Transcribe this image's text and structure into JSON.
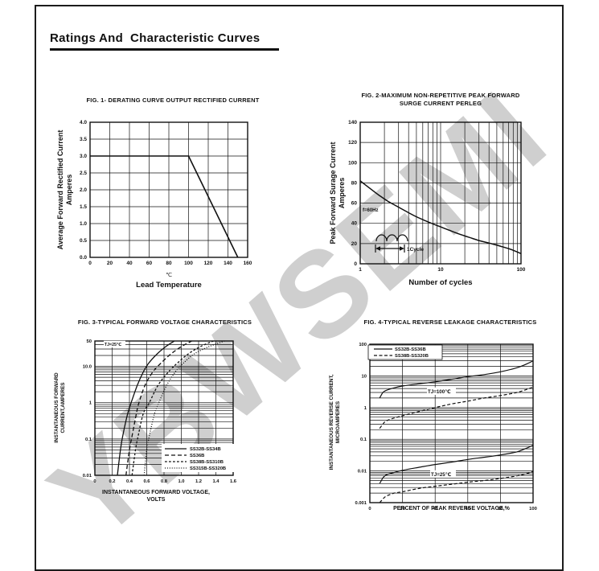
{
  "page": {
    "title": "Ratings And  Characteristic Curves",
    "watermark": "YBWSEMI"
  },
  "colors": {
    "ink": "#111111",
    "watermark_gray": "#cfcfcf",
    "background": "#ffffff"
  },
  "chart_data": [
    {
      "id": "fig1",
      "type": "line",
      "title_lines": [
        "FIG. 1- DERATING CURVE OUTPUT RECTIFIED CURRENT"
      ],
      "ylabel_lines": [
        "Average Forward Rectified Current",
        "Amperes"
      ],
      "xlabel_unit": "℃",
      "xlabel": "Lead Temperature",
      "x_axis": {
        "scale": "linear",
        "min": 0,
        "max": 160,
        "tick_values": [
          0,
          20,
          40,
          60,
          80,
          100,
          120,
          140,
          160
        ],
        "tick_labels": [
          "0",
          "20",
          "40",
          "60",
          "80",
          "100",
          "120",
          "140",
          "160"
        ]
      },
      "y_axis": {
        "scale": "linear",
        "min": 0,
        "max": 4,
        "tick_values": [
          0,
          0.5,
          1,
          1.5,
          2,
          2.5,
          3,
          3.5,
          4
        ],
        "tick_labels": [
          "0.0",
          "0.5",
          "1.0",
          "1.5",
          "2.0",
          "2.5",
          "3.0",
          "3.5",
          "4.0"
        ]
      },
      "grid": true,
      "series": [
        {
          "name": "derating-curve",
          "style": "solid",
          "smooth": false,
          "points": [
            [
              0,
              3
            ],
            [
              100,
              3
            ],
            [
              150,
              0
            ]
          ]
        }
      ],
      "annotations": [],
      "legend": []
    },
    {
      "id": "fig2",
      "type": "line",
      "title_lines": [
        "FIG. 2-MAXIMUM NON-REPETITIVE PEAK FORWARD",
        "SURGE CURRENT PERLEG"
      ],
      "ylabel_lines": [
        "Peak Forward Surage Current",
        "Amperes"
      ],
      "xlabel": "Number of cycles",
      "x_axis": {
        "scale": "log",
        "min": 1,
        "max": 100,
        "tick_values": [
          1,
          10,
          100
        ],
        "tick_labels": [
          "1",
          "10",
          "100"
        ]
      },
      "y_axis": {
        "scale": "linear",
        "min": 0,
        "max": 140,
        "tick_values": [
          0,
          20,
          40,
          60,
          80,
          100,
          120,
          140
        ],
        "tick_labels": [
          "0",
          "20",
          "40",
          "60",
          "80",
          "100",
          "120",
          "140"
        ]
      },
      "grid": true,
      "series": [
        {
          "name": "surge-current",
          "style": "solid",
          "smooth": true,
          "points": [
            [
              1,
              82
            ],
            [
              1.3,
              75
            ],
            [
              1.7,
              68
            ],
            [
              2.2,
              62
            ],
            [
              3,
              56
            ],
            [
              4,
              50.5
            ],
            [
              5,
              46.5
            ],
            [
              6.5,
              42.5
            ],
            [
              8,
              39.5
            ],
            [
              10,
              36.5
            ],
            [
              13,
              33
            ],
            [
              17,
              29.5
            ],
            [
              22,
              26.5
            ],
            [
              30,
              23
            ],
            [
              40,
              20.5
            ],
            [
              55,
              17.5
            ],
            [
              70,
              15
            ],
            [
              85,
              12.5
            ],
            [
              100,
              10
            ]
          ]
        }
      ],
      "annotations": [
        {
          "text": "f=60Hz"
        },
        {
          "text": "1Cycle"
        }
      ],
      "legend": []
    },
    {
      "id": "fig3",
      "type": "line",
      "title_lines": [
        "FIG. 3-TYPICAL FORWARD VOLTAGE CHARACTERISTICS"
      ],
      "ylabel_lines": [
        "INSTANTANEOUS FORWARD",
        "CURRENT,AMPERES"
      ],
      "xlabel_lines": [
        "INSTANTANEOUS FORWARD VOLTAGE,",
        "VOLTS"
      ],
      "x_axis": {
        "scale": "linear",
        "min": 0,
        "max": 1.6,
        "tick_values": [
          0,
          0.2,
          0.4,
          0.6,
          0.8,
          1.0,
          1.2,
          1.4,
          1.6
        ],
        "tick_labels": [
          "0",
          "0.2",
          "0.4",
          "0.6",
          "0.8",
          "1.0",
          "1.2",
          "1.4",
          "1.6"
        ]
      },
      "y_axis": {
        "scale": "log",
        "min": 0.01,
        "max": 50,
        "tick_values": [
          50,
          10,
          1,
          0.1,
          0.01
        ],
        "tick_labels": [
          "50",
          "10.0",
          "1",
          "0.1",
          "0.01"
        ]
      },
      "grid": true,
      "series": [
        {
          "name": "SS32B-SS34B",
          "style": "solid",
          "smooth": true,
          "points": [
            [
              0.26,
              0.01
            ],
            [
              0.3,
              0.06
            ],
            [
              0.33,
              0.15
            ],
            [
              0.38,
              0.5
            ],
            [
              0.42,
              1
            ],
            [
              0.49,
              3
            ],
            [
              0.56,
              7
            ],
            [
              0.62,
              12
            ],
            [
              0.72,
              22
            ],
            [
              0.82,
              35
            ],
            [
              0.92,
              50
            ]
          ]
        },
        {
          "name": "SS36B",
          "style": "longdash",
          "smooth": true,
          "points": [
            [
              0.36,
              0.01
            ],
            [
              0.4,
              0.05
            ],
            [
              0.43,
              0.12
            ],
            [
              0.48,
              0.5
            ],
            [
              0.51,
              1
            ],
            [
              0.58,
              3
            ],
            [
              0.67,
              7
            ],
            [
              0.76,
              12
            ],
            [
              0.88,
              22
            ],
            [
              1.0,
              35
            ],
            [
              1.12,
              50
            ]
          ]
        },
        {
          "name": "SS38B-SS310B",
          "style": "shortdash",
          "smooth": true,
          "points": [
            [
              0.43,
              0.01
            ],
            [
              0.47,
              0.05
            ],
            [
              0.5,
              0.12
            ],
            [
              0.56,
              0.5
            ],
            [
              0.63,
              1
            ],
            [
              0.73,
              3
            ],
            [
              0.85,
              7
            ],
            [
              0.95,
              12
            ],
            [
              1.08,
              22
            ],
            [
              1.22,
              35
            ],
            [
              1.37,
              50
            ]
          ]
        },
        {
          "name": "SS315B-SS320B",
          "style": "dotted",
          "smooth": true,
          "points": [
            [
              0.57,
              0.01
            ],
            [
              0.6,
              0.05
            ],
            [
              0.63,
              0.12
            ],
            [
              0.69,
              0.5
            ],
            [
              0.74,
              1
            ],
            [
              0.83,
              3
            ],
            [
              0.93,
              7
            ],
            [
              1.02,
              12
            ],
            [
              1.15,
              22
            ],
            [
              1.32,
              35
            ],
            [
              1.5,
              50
            ]
          ]
        }
      ],
      "annotations": [
        {
          "text": "TJ=25℃"
        }
      ],
      "legend": [
        {
          "label": "SS32B-SS34B",
          "style": "solid"
        },
        {
          "label": "SS36B",
          "style": "longdash"
        },
        {
          "label": "SS38B-SS310B",
          "style": "shortdash"
        },
        {
          "label": "SS315B-SS320B",
          "style": "dotted"
        }
      ]
    },
    {
      "id": "fig4",
      "type": "line",
      "title_lines": [
        "FIG. 4-TYPICAL REVERSE LEAKAGE CHARACTERISTICS"
      ],
      "ylabel_lines": [
        "INSTANTANEOUS REVERSE CURRENT,",
        "MICROAMPERES"
      ],
      "xlabel": "PERCENT OF PEAK REVERSE VOLTAGE,%",
      "x_axis": {
        "scale": "linear",
        "min": 0,
        "max": 100,
        "tick_values": [
          0,
          20,
          40,
          60,
          80,
          100
        ],
        "tick_labels": [
          "0",
          "20",
          "40",
          "60",
          "80",
          "100"
        ]
      },
      "y_axis": {
        "scale": "log",
        "min": 0.001,
        "max": 100,
        "tick_values": [
          100,
          10,
          1,
          0.1,
          0.01,
          0.001
        ],
        "tick_labels": [
          "100",
          "10",
          "1",
          "0.1",
          "0.01",
          "0.001"
        ]
      },
      "grid": true,
      "series": [
        {
          "name": "SS32B-SS36B-TJ100",
          "style": "solid",
          "smooth": true,
          "points": [
            [
              6,
              2
            ],
            [
              8,
              3
            ],
            [
              10,
              3.5
            ],
            [
              15,
              4.2
            ],
            [
              20,
              4.8
            ],
            [
              30,
              5.6
            ],
            [
              40,
              6.5
            ],
            [
              50,
              7.8
            ],
            [
              60,
              9.5
            ],
            [
              70,
              11
            ],
            [
              80,
              13.5
            ],
            [
              90,
              18
            ],
            [
              97,
              25
            ],
            [
              100,
              30
            ]
          ]
        },
        {
          "name": "SS38B-SS320B-TJ100",
          "style": "dash",
          "smooth": true,
          "points": [
            [
              6,
              0.22
            ],
            [
              8,
              0.3
            ],
            [
              10,
              0.38
            ],
            [
              15,
              0.47
            ],
            [
              20,
              0.55
            ],
            [
              30,
              0.75
            ],
            [
              40,
              1.0
            ],
            [
              50,
              1.3
            ],
            [
              60,
              1.6
            ],
            [
              70,
              2.0
            ],
            [
              80,
              2.4
            ],
            [
              90,
              3.0
            ],
            [
              97,
              3.9
            ],
            [
              100,
              4.5
            ]
          ]
        },
        {
          "name": "SS32B-SS36B-TJ25",
          "style": "solid",
          "smooth": true,
          "points": [
            [
              6,
              0.004
            ],
            [
              8,
              0.006
            ],
            [
              10,
              0.0075
            ],
            [
              15,
              0.009
            ],
            [
              20,
              0.0105
            ],
            [
              30,
              0.013
            ],
            [
              40,
              0.016
            ],
            [
              50,
              0.019
            ],
            [
              60,
              0.023
            ],
            [
              70,
              0.027
            ],
            [
              80,
              0.032
            ],
            [
              90,
              0.04
            ],
            [
              97,
              0.055
            ],
            [
              100,
              0.065
            ]
          ]
        },
        {
          "name": "SS38B-SS320B-TJ25",
          "style": "dash",
          "smooth": true,
          "points": [
            [
              6,
              0.001
            ],
            [
              8,
              0.0013
            ],
            [
              10,
              0.0016
            ],
            [
              15,
              0.002
            ],
            [
              20,
              0.0022
            ],
            [
              30,
              0.0028
            ],
            [
              40,
              0.0033
            ],
            [
              50,
              0.0038
            ],
            [
              60,
              0.0044
            ],
            [
              70,
              0.005
            ],
            [
              80,
              0.0058
            ],
            [
              90,
              0.007
            ],
            [
              97,
              0.0085
            ],
            [
              100,
              0.0098
            ]
          ]
        }
      ],
      "annotations": [
        {
          "text": "TJ=100℃"
        },
        {
          "text": "TJ=25℃"
        }
      ],
      "legend": [
        {
          "label": "SS32B-SS36B",
          "style": "solid"
        },
        {
          "label": "SS38B-SS320B",
          "style": "dash"
        }
      ]
    }
  ]
}
